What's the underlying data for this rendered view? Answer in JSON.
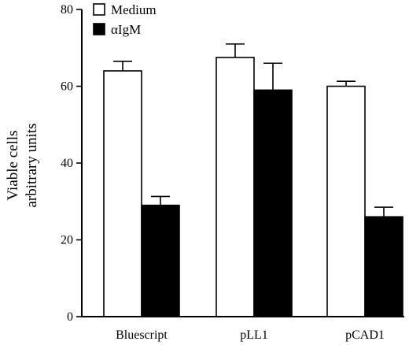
{
  "chart_data": {
    "type": "bar",
    "categories": [
      "Bluescript",
      "pLL1",
      "pCAD1"
    ],
    "series": [
      {
        "name": "Medium",
        "values": [
          64,
          67.5,
          60
        ],
        "errors": [
          2.5,
          3.5,
          1.3
        ],
        "color": "#ffffff"
      },
      {
        "name": "αIgM",
        "values": [
          29,
          59,
          26
        ],
        "errors": [
          2.3,
          7,
          2.5
        ],
        "color": "#000000"
      }
    ],
    "ylabel_line1": "Viable cells",
    "ylabel_line2": "arbitrary units",
    "yticks": [
      0,
      20,
      40,
      60,
      80
    ],
    "ylim": [
      0,
      80
    ],
    "legend_position": "top-left",
    "grid": false
  }
}
